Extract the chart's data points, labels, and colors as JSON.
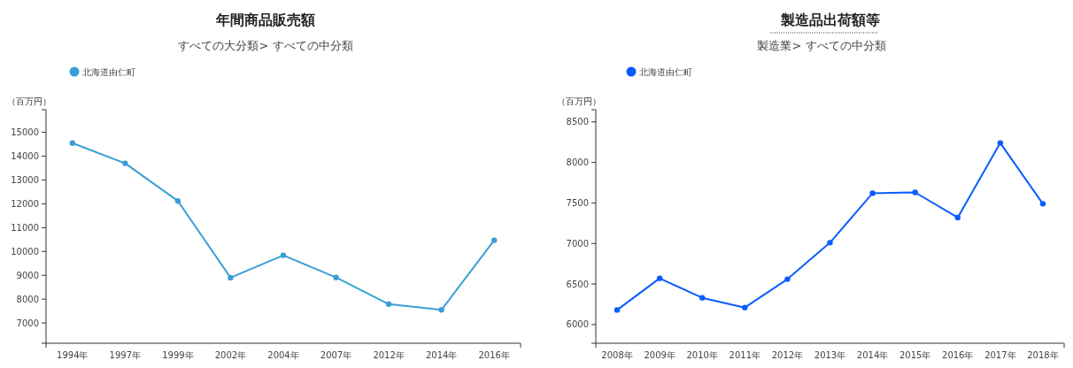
{
  "chart_data": [
    {
      "type": "line",
      "title": "年間商品販売額",
      "subtitle": "すべての大分類> すべての中分類",
      "ylabel": "（百万円）",
      "categories": [
        "1994年",
        "1997年",
        "1999年",
        "2002年",
        "2004年",
        "2007年",
        "2012年",
        "2014年",
        "2016年"
      ],
      "series": [
        {
          "name": "北海道由仁町",
          "color": "#3a9fd6",
          "values": [
            14550,
            13700,
            12120,
            8900,
            9840,
            8910,
            7790,
            7550,
            10470
          ]
        }
      ],
      "ylim": [
        6150,
        15950
      ],
      "yticks": [
        7000,
        8000,
        9000,
        10000,
        11000,
        12000,
        13000,
        14000,
        15000
      ],
      "legend": "top left",
      "marker": "circle",
      "grid": false
    },
    {
      "type": "line",
      "title": "製造品出荷額等",
      "subtitle": "製造業> すべての中分類",
      "ylabel": "（百万円）",
      "categories": [
        "2008年",
        "2009年",
        "2010年",
        "2011年",
        "2012年",
        "2013年",
        "2014年",
        "2015年",
        "2016年",
        "2017年",
        "2018年"
      ],
      "series": [
        {
          "name": "北海道由仁町",
          "color": "#0a5cff",
          "values": [
            6180,
            6570,
            6330,
            6210,
            6560,
            7010,
            7620,
            7630,
            7320,
            8240,
            7490
          ]
        }
      ],
      "ylim": [
        5770,
        8650
      ],
      "yticks": [
        6000,
        6500,
        7000,
        7500,
        8000,
        8500
      ],
      "legend": "top left",
      "marker": "circle",
      "grid": false
    }
  ]
}
